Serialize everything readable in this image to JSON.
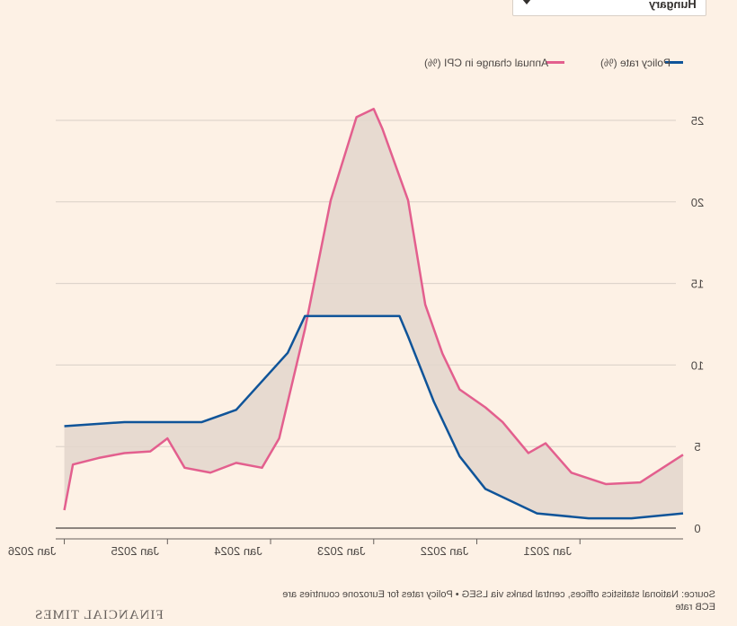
{
  "controls": {
    "country_select": {
      "value": "Hungary"
    }
  },
  "legend": {
    "items": [
      {
        "label": "Policy rate (%)",
        "color": "#0f5499"
      },
      {
        "label": "Annual change in CPI (%)",
        "color": "#e35f8e"
      }
    ]
  },
  "chart_data": {
    "type": "line",
    "mirrored_horizontally": true,
    "x_ticks": [
      "Jan 2021",
      "Jan 2022",
      "Jan 2023",
      "Jan 2024",
      "Jan 2025",
      "Jan 2026"
    ],
    "y_ticks": [
      "0",
      "5",
      "10",
      "15",
      "20",
      "25"
    ],
    "ylim": [
      0,
      25
    ],
    "grid": true,
    "legend_position": "top-right",
    "shaded_area_between_series": true,
    "series": [
      {
        "name": "Policy rate (%)",
        "color": "#0f5499",
        "points": [
          [
            "2020-01",
            0.9
          ],
          [
            "2020-07",
            0.6
          ],
          [
            "2020-12",
            0.6
          ],
          [
            "2021-06",
            0.9
          ],
          [
            "2021-09",
            1.65
          ],
          [
            "2021-12",
            2.4
          ],
          [
            "2022-03",
            4.4
          ],
          [
            "2022-06",
            7.75
          ],
          [
            "2022-09",
            11.75
          ],
          [
            "2022-10",
            13.0
          ],
          [
            "2023-04",
            13.0
          ],
          [
            "2023-09",
            13.0
          ],
          [
            "2023-11",
            10.75
          ],
          [
            "2024-02",
            9.0
          ],
          [
            "2024-05",
            7.25
          ],
          [
            "2024-09",
            6.5
          ],
          [
            "2024-12",
            6.5
          ],
          [
            "2025-06",
            6.5
          ],
          [
            "2026-01",
            6.25
          ]
        ]
      },
      {
        "name": "Annual change in CPI (%)",
        "color": "#e35f8e",
        "points": [
          [
            "2020-01",
            4.5
          ],
          [
            "2020-06",
            2.8
          ],
          [
            "2020-10",
            2.7
          ],
          [
            "2021-02",
            3.4
          ],
          [
            "2021-05",
            5.2
          ],
          [
            "2021-07",
            4.6
          ],
          [
            "2021-10",
            6.5
          ],
          [
            "2021-12",
            7.4
          ],
          [
            "2022-03",
            8.5
          ],
          [
            "2022-05",
            10.7
          ],
          [
            "2022-07",
            13.7
          ],
          [
            "2022-09",
            20.1
          ],
          [
            "2022-12",
            24.5
          ],
          [
            "2023-01",
            25.7
          ],
          [
            "2023-03",
            25.2
          ],
          [
            "2023-06",
            20.1
          ],
          [
            "2023-09",
            12.2
          ],
          [
            "2023-12",
            5.5
          ],
          [
            "2024-02",
            3.7
          ],
          [
            "2024-05",
            4.0
          ],
          [
            "2024-08",
            3.4
          ],
          [
            "2024-11",
            3.7
          ],
          [
            "2025-01",
            5.5
          ],
          [
            "2025-03",
            4.7
          ],
          [
            "2025-06",
            4.6
          ],
          [
            "2025-09",
            4.3
          ],
          [
            "2025-12",
            3.9
          ],
          [
            "2026-01",
            1.1
          ]
        ]
      }
    ]
  },
  "footer": {
    "source_line1": "Source: National statistics offices, central banks via LSEG • Policy rates for Eurozone countries are",
    "source_line2": "ECB rate",
    "brand": "FINANCIAL TIMES"
  }
}
